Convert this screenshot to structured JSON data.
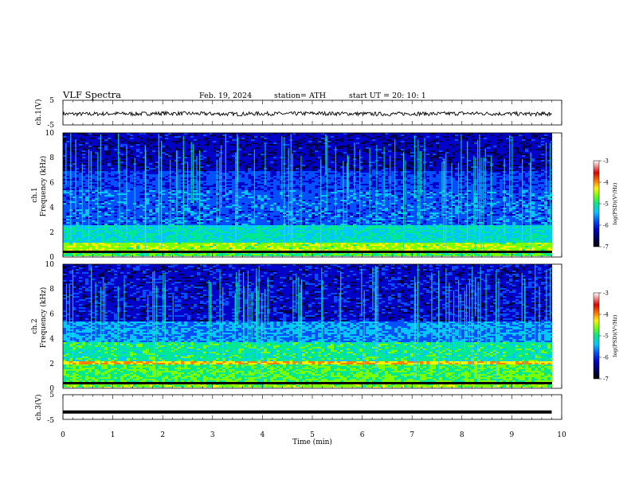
{
  "header": {
    "title": "VLF  Spectra",
    "date": "Feb. 19, 2024",
    "station": "station= ATH",
    "start": "start  UT  =    20: 10: 1"
  },
  "chart_data": [
    {
      "type": "line",
      "panel": "ch1-waveform",
      "ylabel": "ch.1(V)",
      "ylim": [
        -5,
        5
      ],
      "y_ticks": [
        "5",
        "-5"
      ],
      "x": [
        0,
        0.5,
        1,
        1.5,
        2,
        2.5,
        3,
        3.5,
        4,
        4.5,
        5,
        5.5,
        6,
        6.5,
        7,
        7.5,
        8,
        8.5,
        9,
        9.5,
        9.8
      ],
      "y": [
        -0.5,
        -0.6,
        -0.4,
        -0.5,
        -0.3,
        -0.4,
        -0.5,
        -0.6,
        -0.4,
        -0.5,
        -0.3,
        -0.4,
        -0.5,
        -0.6,
        -0.4,
        -0.5,
        -0.3,
        -0.4,
        -0.5,
        -0.6,
        -0.5
      ],
      "color": "#000000"
    },
    {
      "type": "heatmap",
      "panel": "ch1-spectrogram",
      "ylabel": "ch.1\nFrequency (kHz)",
      "ylim": [
        0,
        10
      ],
      "y_ticks": [
        "0",
        "2",
        "4",
        "6",
        "8",
        "10"
      ],
      "colorbar": {
        "label": "log(PSD)(V²/Hz)",
        "range": [
          -7,
          -3
        ],
        "ticks": [
          "-3",
          "-4",
          "-5",
          "-6",
          "-7"
        ]
      }
    },
    {
      "type": "heatmap",
      "panel": "ch2-spectrogram",
      "ylabel": "ch.2\nFrequency (kHz)",
      "ylim": [
        0,
        10
      ],
      "y_ticks": [
        "0",
        "2",
        "4",
        "6",
        "8",
        "10"
      ],
      "colorbar": {
        "label": "log(PSD)(V²/Hz)",
        "range": [
          -7,
          -3
        ],
        "ticks": [
          "-3",
          "-4",
          "-5",
          "-6",
          "-7"
        ]
      }
    },
    {
      "type": "line",
      "panel": "ch3-waveform",
      "ylabel": "ch.3(V)",
      "ylim": [
        -5,
        5
      ],
      "y_ticks": [
        "5",
        "-5"
      ],
      "x": [
        0,
        9.8
      ],
      "y": [
        -2,
        -2
      ],
      "color": "#000000"
    }
  ],
  "x_axis": {
    "label": "Time  (min)",
    "range": [
      0,
      10
    ],
    "ticks": [
      "0",
      "1",
      "2",
      "3",
      "4",
      "5",
      "6",
      "7",
      "8",
      "9",
      "10"
    ]
  },
  "colors": {
    "colormap": [
      "#000000",
      "#00004a",
      "#0000c8",
      "#0050ff",
      "#00c8ff",
      "#00e890",
      "#7cff00",
      "#fff000",
      "#ff8000",
      "#e00000",
      "#ffffff"
    ]
  }
}
